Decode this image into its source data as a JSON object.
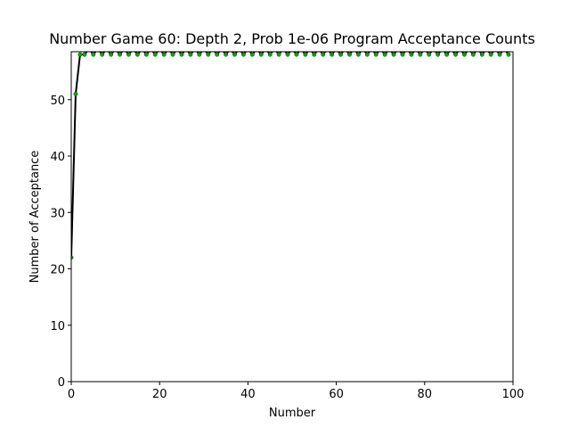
{
  "chart_data": {
    "type": "line",
    "title": "Number Game 60: Depth 2, Prob 1e-06 Program Acceptance Counts",
    "xlabel": "Number",
    "ylabel": "Number of Acceptance",
    "xlim": [
      0,
      100
    ],
    "ylim": [
      0,
      58.5
    ],
    "xticks": [
      "0",
      "20",
      "40",
      "60",
      "80",
      "100"
    ],
    "yticks": [
      "0",
      "10",
      "20",
      "30",
      "40",
      "50"
    ],
    "grid": false,
    "legend": "none",
    "line_color": "#000000",
    "marker_color": "#00aa00",
    "series": [
      {
        "x": [
          0,
          1,
          2,
          3,
          4,
          5,
          6,
          7,
          8,
          9,
          10,
          11,
          12,
          13,
          14,
          15,
          16,
          17,
          18,
          19,
          20,
          21,
          22,
          23,
          24,
          25,
          26,
          27,
          28,
          29,
          30,
          31,
          32,
          33,
          34,
          35,
          36,
          37,
          38,
          39,
          40,
          41,
          42,
          43,
          44,
          45,
          46,
          47,
          48,
          49,
          50,
          51,
          52,
          53,
          54,
          55,
          56,
          57,
          58,
          59,
          60,
          61,
          62,
          63,
          64,
          65,
          66,
          67,
          68,
          69,
          70,
          71,
          72,
          73,
          74,
          75,
          76,
          77,
          78,
          79,
          80,
          81,
          82,
          83,
          84,
          85,
          86,
          87,
          88,
          89,
          90,
          91,
          92,
          93,
          94,
          95,
          96,
          97,
          98,
          99
        ],
        "y": [
          22,
          51,
          58,
          58,
          59,
          58,
          59,
          58,
          59,
          58,
          59,
          58,
          59,
          58,
          59,
          58,
          59,
          58,
          59,
          58,
          59,
          58,
          59,
          58,
          59,
          58,
          59,
          58,
          59,
          58,
          59,
          58,
          59,
          58,
          59,
          58,
          59,
          58,
          59,
          58,
          59,
          58,
          59,
          58,
          59,
          58,
          59,
          58,
          59,
          58,
          59,
          58,
          59,
          58,
          59,
          58,
          59,
          58,
          59,
          58,
          59,
          58,
          59,
          58,
          59,
          58,
          59,
          58,
          59,
          58,
          59,
          58,
          59,
          58,
          59,
          58,
          59,
          58,
          59,
          58,
          59,
          58,
          59,
          58,
          59,
          58,
          59,
          58,
          59,
          58,
          59,
          58,
          59,
          58,
          59,
          58,
          59,
          58,
          59,
          58
        ]
      }
    ]
  }
}
